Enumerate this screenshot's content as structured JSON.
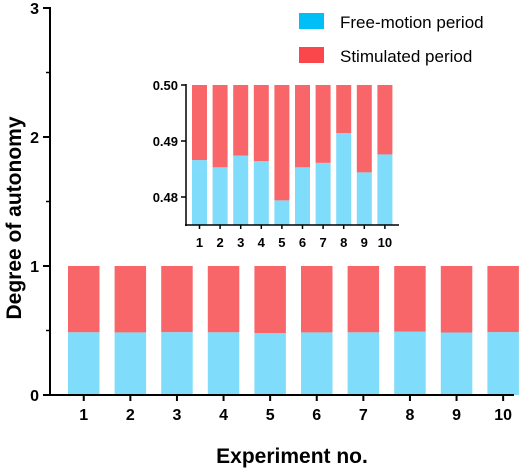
{
  "chart_data": [
    {
      "type": "bar",
      "stacked": true,
      "xlabel": "Experiment no.",
      "ylabel": "Degree of autonomy",
      "ylim": [
        0,
        3
      ],
      "yticks": [
        "0",
        "1",
        "2",
        "3"
      ],
      "categories": [
        "1",
        "2",
        "3",
        "4",
        "5",
        "6",
        "7",
        "8",
        "9",
        "10"
      ],
      "series": [
        {
          "name": "Free-motion period",
          "color": "#7fdcfa",
          "values": [
            0.4866,
            0.4853,
            0.4874,
            0.4864,
            0.4794,
            0.4853,
            0.4861,
            0.4914,
            0.4844,
            0.4876
          ]
        },
        {
          "name": "Stimulated period",
          "color": "#f86669",
          "values": [
            0.5134,
            0.5147,
            0.5126,
            0.5136,
            0.5206,
            0.5147,
            0.5139,
            0.5086,
            0.5156,
            0.5124
          ]
        }
      ],
      "legend_position": "top-right",
      "grid": false
    },
    {
      "type": "bar",
      "stacked": true,
      "role": "inset zoom",
      "ylim": [
        0.475,
        0.5
      ],
      "yticks": [
        "0.48",
        "0.49",
        "0.50"
      ],
      "categories": [
        "1",
        "2",
        "3",
        "4",
        "5",
        "6",
        "7",
        "8",
        "9",
        "10"
      ],
      "grid": false
    }
  ],
  "legend": {
    "items": [
      {
        "label": "Free-motion period",
        "color": "#00bff7"
      },
      {
        "label": "Stimulated period",
        "color": "#f9474b"
      }
    ]
  }
}
